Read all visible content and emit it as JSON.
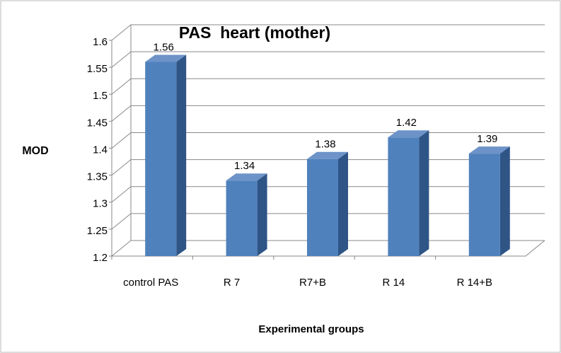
{
  "chart_data": {
    "type": "bar",
    "title": "PAS  heart (mother)",
    "y_label": "MOD",
    "x_label": "Experimental groups",
    "categories": [
      "control PAS",
      "R 7",
      "R7+B",
      "R 14",
      "R 14+B"
    ],
    "values": [
      1.56,
      1.34,
      1.38,
      1.42,
      1.39
    ],
    "color": "#4f81bd",
    "ylim": [
      1.2,
      1.6
    ],
    "yticks": [
      1.2,
      1.25,
      1.3,
      1.35,
      1.4,
      1.45,
      1.5,
      1.55,
      1.6
    ],
    "grid": true
  }
}
